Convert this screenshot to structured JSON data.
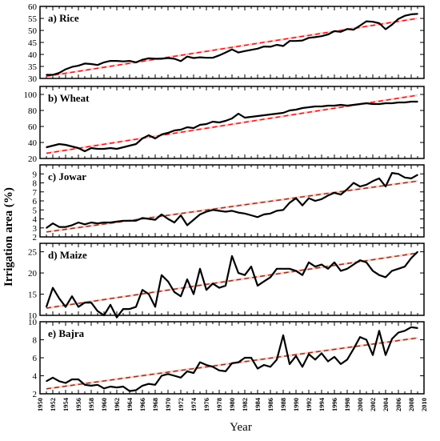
{
  "ylabel": "Irrigation area (%)",
  "xlabel": "Year",
  "colors": {
    "series": "#000000",
    "trend": "#e31a1c",
    "trend_shadow": "#f4a6a6",
    "trend_alt": "#8b3a1a"
  },
  "chart_data": [
    {
      "type": "line",
      "title": "a) Rice",
      "ylim": [
        30,
        60
      ],
      "yticks": [
        30,
        35,
        40,
        45,
        50,
        55,
        60
      ],
      "x": [
        1951,
        1952,
        1953,
        1954,
        1955,
        1956,
        1957,
        1958,
        1959,
        1960,
        1961,
        1962,
        1963,
        1964,
        1965,
        1966,
        1967,
        1968,
        1969,
        1970,
        1971,
        1972,
        1973,
        1974,
        1975,
        1976,
        1977,
        1978,
        1979,
        1980,
        1981,
        1982,
        1983,
        1984,
        1985,
        1986,
        1987,
        1988,
        1989,
        1990,
        1991,
        1992,
        1993,
        1994,
        1995,
        1996,
        1997,
        1998,
        1999,
        2000,
        2001,
        2002,
        2003,
        2004,
        2005,
        2006,
        2007,
        2008,
        2009
      ],
      "values": [
        31.5,
        31.5,
        32.3,
        33.8,
        34.8,
        35.3,
        36.2,
        36.0,
        35.6,
        36.7,
        37.3,
        37.3,
        37.1,
        37.3,
        36.7,
        37.8,
        38.4,
        38.2,
        38.2,
        38.5,
        38.2,
        37.2,
        39.1,
        38.5,
        38.8,
        38.6,
        38.6,
        39.6,
        40.8,
        42.1,
        40.8,
        41.4,
        41.9,
        42.4,
        43.3,
        43.2,
        44.0,
        43.5,
        45.6,
        45.6,
        45.8,
        46.9,
        47.2,
        47.6,
        48.3,
        49.7,
        49.4,
        50.6,
        50.3,
        52.0,
        53.8,
        53.6,
        53.0,
        50.5,
        52.4,
        54.8,
        56.1,
        56.7,
        56.9
      ],
      "trend": [
        30.9,
        55.0
      ],
      "trend_color": "trend"
    },
    {
      "type": "line",
      "title": "b) Wheat",
      "ylim": [
        20,
        110
      ],
      "yticks": [
        20,
        40,
        60,
        80,
        100
      ],
      "x": [
        1951,
        1952,
        1953,
        1954,
        1955,
        1956,
        1957,
        1958,
        1959,
        1960,
        1961,
        1962,
        1963,
        1964,
        1965,
        1966,
        1967,
        1968,
        1969,
        1970,
        1971,
        1972,
        1973,
        1974,
        1975,
        1976,
        1977,
        1978,
        1979,
        1980,
        1981,
        1982,
        1983,
        1984,
        1985,
        1986,
        1987,
        1988,
        1989,
        1990,
        1991,
        1992,
        1993,
        1994,
        1995,
        1996,
        1997,
        1998,
        1999,
        2000,
        2001,
        2002,
        2003,
        2004,
        2005,
        2006,
        2007,
        2008,
        2009
      ],
      "values": [
        34,
        36,
        38,
        37,
        35,
        33,
        29,
        33,
        32,
        32,
        33,
        32,
        34,
        36,
        38,
        45,
        49,
        45,
        50,
        52,
        55,
        56,
        59,
        58,
        62,
        63,
        66,
        65,
        67,
        70,
        76,
        71,
        72,
        73,
        74,
        75,
        76,
        77,
        80,
        81,
        83,
        84,
        85,
        85,
        86,
        86,
        87,
        86,
        87,
        88,
        89,
        88,
        88,
        89,
        89,
        90,
        90,
        91,
        91
      ],
      "trend": [
        26.5,
        99
      ],
      "trend_color": "trend"
    },
    {
      "type": "line",
      "title": "c) Jowar",
      "ylim": [
        2,
        10
      ],
      "yticks": [
        2,
        3,
        4,
        5,
        6,
        7,
        8,
        9
      ],
      "x": [
        1951,
        1952,
        1953,
        1954,
        1955,
        1956,
        1957,
        1958,
        1959,
        1960,
        1961,
        1962,
        1963,
        1964,
        1965,
        1966,
        1967,
        1968,
        1969,
        1970,
        1971,
        1972,
        1973,
        1974,
        1975,
        1976,
        1977,
        1978,
        1979,
        1980,
        1981,
        1982,
        1983,
        1984,
        1985,
        1986,
        1987,
        1988,
        1989,
        1990,
        1991,
        1992,
        1993,
        1994,
        1995,
        1996,
        1997,
        1998,
        1999,
        2000,
        2001,
        2002,
        2003,
        2004,
        2005,
        2006,
        2007,
        2008,
        2009
      ],
      "values": [
        3.0,
        3.5,
        3.1,
        3.1,
        3.3,
        3.6,
        3.4,
        3.6,
        3.5,
        3.6,
        3.6,
        3.7,
        3.8,
        3.8,
        3.8,
        4.1,
        4.0,
        3.9,
        4.5,
        4.0,
        3.6,
        4.4,
        3.3,
        3.9,
        4.5,
        4.8,
        5.0,
        4.9,
        4.8,
        4.9,
        4.7,
        4.6,
        4.4,
        4.2,
        4.5,
        4.6,
        4.9,
        5.0,
        5.8,
        6.3,
        5.5,
        6.3,
        6.0,
        6.2,
        6.6,
        6.9,
        6.7,
        7.3,
        8.0,
        7.6,
        7.8,
        8.2,
        8.5,
        7.6,
        9.1,
        9.0,
        8.6,
        8.5,
        8.9
      ],
      "trend": [
        2.55,
        8.2
      ],
      "trend_color": "trend_alt"
    },
    {
      "type": "line",
      "title": "d) Maize",
      "ylim": [
        10,
        27
      ],
      "yticks": [
        10,
        15,
        20,
        25
      ],
      "x": [
        1951,
        1952,
        1953,
        1954,
        1955,
        1956,
        1957,
        1958,
        1959,
        1960,
        1961,
        1962,
        1963,
        1964,
        1965,
        1966,
        1967,
        1968,
        1969,
        1970,
        1971,
        1972,
        1973,
        1974,
        1975,
        1976,
        1977,
        1978,
        1979,
        1980,
        1981,
        1982,
        1983,
        1984,
        1985,
        1986,
        1987,
        1988,
        1989,
        1990,
        1991,
        1992,
        1993,
        1994,
        1995,
        1996,
        1997,
        1998,
        1999,
        2000,
        2001,
        2002,
        2003,
        2004,
        2005,
        2006,
        2007,
        2008,
        2009
      ],
      "values": [
        12.0,
        16.5,
        14.0,
        12.0,
        14.5,
        12.0,
        13.0,
        13.0,
        11.0,
        10.0,
        12.5,
        9.5,
        11.5,
        11.5,
        12.0,
        16.0,
        15.0,
        12.0,
        19.5,
        18.0,
        15.5,
        14.5,
        18.5,
        15.0,
        21.0,
        16.0,
        17.5,
        16.5,
        17.0,
        24.0,
        20.0,
        19.5,
        21.5,
        17.0,
        18.0,
        19.0,
        21.0,
        21.0,
        21.0,
        20.5,
        19.5,
        22.5,
        21.5,
        22.0,
        21.0,
        22.5,
        20.5,
        21.0,
        22.0,
        23.0,
        22.5,
        20.5,
        19.5,
        19.0,
        20.5,
        21.0,
        21.5,
        23.5,
        25.0
      ],
      "trend": [
        11.7,
        24.7
      ],
      "trend_color": "trend_alt"
    },
    {
      "type": "line",
      "title": "e) Bajra",
      "ylim": [
        2,
        10
      ],
      "yticks": [
        2,
        4,
        6,
        8,
        10
      ],
      "x": [
        1951,
        1952,
        1953,
        1954,
        1955,
        1956,
        1957,
        1958,
        1959,
        1960,
        1961,
        1962,
        1963,
        1964,
        1965,
        1966,
        1967,
        1968,
        1969,
        1970,
        1971,
        1972,
        1973,
        1974,
        1975,
        1976,
        1977,
        1978,
        1979,
        1980,
        1981,
        1982,
        1983,
        1984,
        1985,
        1986,
        1987,
        1988,
        1989,
        1990,
        1991,
        1992,
        1993,
        1994,
        1995,
        1996,
        1997,
        1998,
        1999,
        2000,
        2001,
        2002,
        2003,
        2004,
        2005,
        2006,
        2007,
        2008,
        2009
      ],
      "values": [
        3.4,
        3.8,
        3.4,
        3.2,
        3.6,
        3.6,
        3.0,
        2.9,
        3.0,
        2.6,
        2.8,
        2.7,
        2.8,
        2.3,
        2.4,
        2.9,
        3.1,
        3.0,
        4.0,
        4.2,
        4.0,
        3.8,
        4.5,
        4.3,
        5.5,
        5.2,
        5.0,
        4.6,
        4.5,
        5.4,
        5.5,
        6.0,
        6.0,
        4.8,
        5.2,
        5.0,
        5.8,
        8.5,
        5.3,
        6.2,
        5.0,
        6.4,
        5.8,
        6.5,
        5.6,
        6.1,
        5.3,
        5.8,
        7.0,
        8.3,
        8.0,
        6.3,
        9.0,
        6.3,
        8.1,
        8.8,
        9.0,
        9.4,
        9.3
      ],
      "trend": [
        2.55,
        8.2
      ],
      "trend_color": "trend_alt"
    }
  ],
  "x_axis": {
    "xlim": [
      1950,
      2010
    ],
    "label_start": 1950,
    "label_step": 2,
    "tick_step": 1
  }
}
